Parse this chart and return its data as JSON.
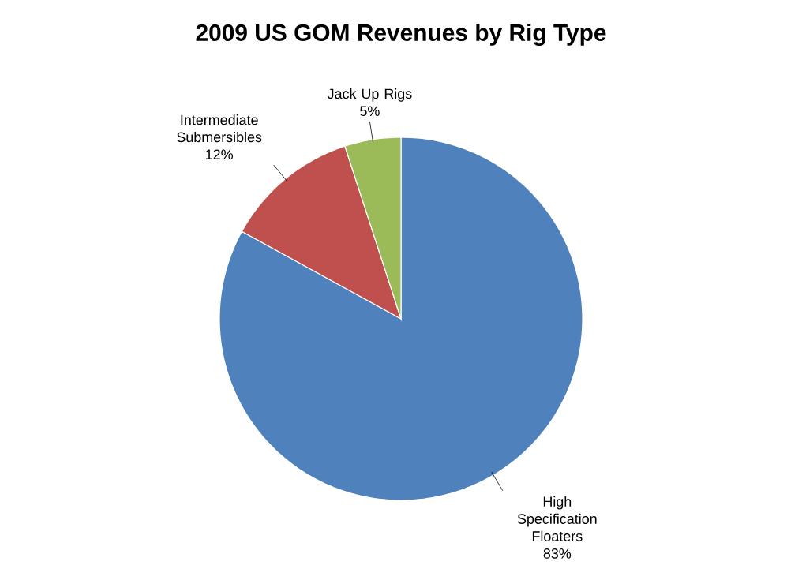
{
  "chart_data": {
    "type": "pie",
    "title": "2009 US GOM Revenues by Rig Type",
    "categories": [
      "High Specification Floaters",
      "Intermediate Submersibles",
      "Jack Up Rigs"
    ],
    "values": [
      83,
      12,
      5
    ],
    "colors": [
      "#4f81bd",
      "#c0504d",
      "#9bbb59"
    ],
    "value_labels": [
      "83%",
      "12%",
      "5%"
    ]
  }
}
